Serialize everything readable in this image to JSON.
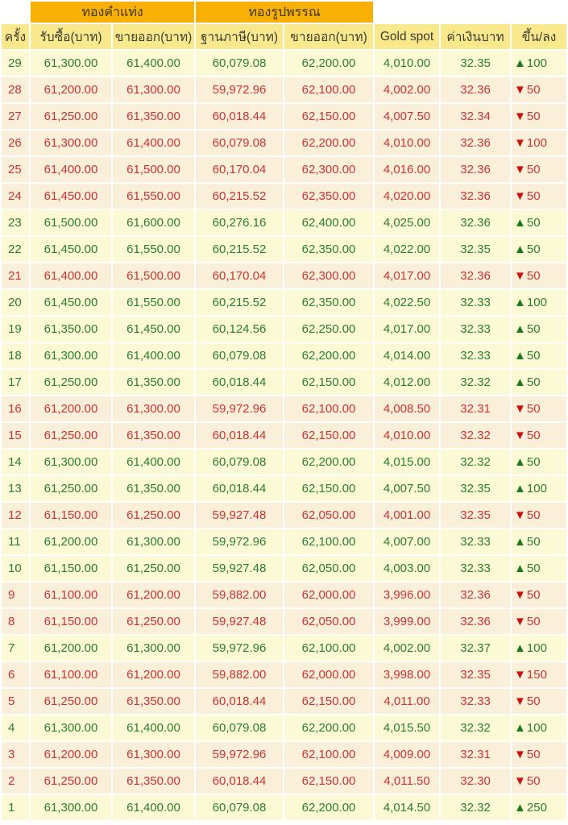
{
  "chart_data": {
    "type": "table",
    "title": "",
    "group_headers": [
      {
        "label": "ทองคำแท่ง",
        "spans_columns": [
          "รับซื้อ(บาท)",
          "ขายออก(บาท)"
        ]
      },
      {
        "label": "ทองรูปพรรณ",
        "spans_columns": [
          "ฐานภาษี(บาท)",
          "ขายออก(บาท)"
        ]
      }
    ],
    "columns": [
      "ครั้ง",
      "รับซื้อ(บาท)",
      "ขายออก(บาท)",
      "ฐานภาษี(บาท)",
      "ขายออก(บาท)",
      "Gold spot",
      "ค่าเงินบาท",
      "ขึ้น/ลง"
    ],
    "icons": {
      "up": "▲",
      "down": "▼"
    },
    "rows": [
      {
        "no": "29",
        "bar_buy": "61,300.00",
        "bar_sell": "61,400.00",
        "tax_base": "60,079.08",
        "ornament_sell": "62,200.00",
        "gold_spot": "4,010.00",
        "baht_rate": "32.35",
        "direction": "up",
        "change": "100"
      },
      {
        "no": "28",
        "bar_buy": "61,200.00",
        "bar_sell": "61,300.00",
        "tax_base": "59,972.96",
        "ornament_sell": "62,100.00",
        "gold_spot": "4,002.00",
        "baht_rate": "32.36",
        "direction": "down",
        "change": "50"
      },
      {
        "no": "27",
        "bar_buy": "61,250.00",
        "bar_sell": "61,350.00",
        "tax_base": "60,018.44",
        "ornament_sell": "62,150.00",
        "gold_spot": "4,007.50",
        "baht_rate": "32.34",
        "direction": "down",
        "change": "50"
      },
      {
        "no": "26",
        "bar_buy": "61,300.00",
        "bar_sell": "61,400.00",
        "tax_base": "60,079.08",
        "ornament_sell": "62,200.00",
        "gold_spot": "4,010.00",
        "baht_rate": "32.36",
        "direction": "down",
        "change": "100"
      },
      {
        "no": "25",
        "bar_buy": "61,400.00",
        "bar_sell": "61,500.00",
        "tax_base": "60,170.04",
        "ornament_sell": "62,300.00",
        "gold_spot": "4,016.00",
        "baht_rate": "32.36",
        "direction": "down",
        "change": "50"
      },
      {
        "no": "24",
        "bar_buy": "61,450.00",
        "bar_sell": "61,550.00",
        "tax_base": "60,215.52",
        "ornament_sell": "62,350.00",
        "gold_spot": "4,020.00",
        "baht_rate": "32.36",
        "direction": "down",
        "change": "50"
      },
      {
        "no": "23",
        "bar_buy": "61,500.00",
        "bar_sell": "61,600.00",
        "tax_base": "60,276.16",
        "ornament_sell": "62,400.00",
        "gold_spot": "4,025.00",
        "baht_rate": "32.36",
        "direction": "up",
        "change": "50"
      },
      {
        "no": "22",
        "bar_buy": "61,450.00",
        "bar_sell": "61,550.00",
        "tax_base": "60,215.52",
        "ornament_sell": "62,350.00",
        "gold_spot": "4,022.00",
        "baht_rate": "32.35",
        "direction": "up",
        "change": "50"
      },
      {
        "no": "21",
        "bar_buy": "61,400.00",
        "bar_sell": "61,500.00",
        "tax_base": "60,170.04",
        "ornament_sell": "62,300.00",
        "gold_spot": "4,017.00",
        "baht_rate": "32.36",
        "direction": "down",
        "change": "50"
      },
      {
        "no": "20",
        "bar_buy": "61,450.00",
        "bar_sell": "61,550.00",
        "tax_base": "60,215.52",
        "ornament_sell": "62,350.00",
        "gold_spot": "4,022.50",
        "baht_rate": "32.33",
        "direction": "up",
        "change": "100"
      },
      {
        "no": "19",
        "bar_buy": "61,350.00",
        "bar_sell": "61,450.00",
        "tax_base": "60,124.56",
        "ornament_sell": "62,250.00",
        "gold_spot": "4,017.00",
        "baht_rate": "32.33",
        "direction": "up",
        "change": "50"
      },
      {
        "no": "18",
        "bar_buy": "61,300.00",
        "bar_sell": "61,400.00",
        "tax_base": "60,079.08",
        "ornament_sell": "62,200.00",
        "gold_spot": "4,014.00",
        "baht_rate": "32.33",
        "direction": "up",
        "change": "50"
      },
      {
        "no": "17",
        "bar_buy": "61,250.00",
        "bar_sell": "61,350.00",
        "tax_base": "60,018.44",
        "ornament_sell": "62,150.00",
        "gold_spot": "4,012.00",
        "baht_rate": "32.32",
        "direction": "up",
        "change": "50"
      },
      {
        "no": "16",
        "bar_buy": "61,200.00",
        "bar_sell": "61,300.00",
        "tax_base": "59,972.96",
        "ornament_sell": "62,100.00",
        "gold_spot": "4,008.50",
        "baht_rate": "32.31",
        "direction": "down",
        "change": "50"
      },
      {
        "no": "15",
        "bar_buy": "61,250.00",
        "bar_sell": "61,350.00",
        "tax_base": "60,018.44",
        "ornament_sell": "62,150.00",
        "gold_spot": "4,010.00",
        "baht_rate": "32.32",
        "direction": "down",
        "change": "50"
      },
      {
        "no": "14",
        "bar_buy": "61,300.00",
        "bar_sell": "61,400.00",
        "tax_base": "60,079.08",
        "ornament_sell": "62,200.00",
        "gold_spot": "4,015.00",
        "baht_rate": "32.32",
        "direction": "up",
        "change": "50"
      },
      {
        "no": "13",
        "bar_buy": "61,250.00",
        "bar_sell": "61,350.00",
        "tax_base": "60,018.44",
        "ornament_sell": "62,150.00",
        "gold_spot": "4,007.50",
        "baht_rate": "32.35",
        "direction": "up",
        "change": "100"
      },
      {
        "no": "12",
        "bar_buy": "61,150.00",
        "bar_sell": "61,250.00",
        "tax_base": "59,927.48",
        "ornament_sell": "62,050.00",
        "gold_spot": "4,001.00",
        "baht_rate": "32.35",
        "direction": "down",
        "change": "50"
      },
      {
        "no": "11",
        "bar_buy": "61,200.00",
        "bar_sell": "61,300.00",
        "tax_base": "59,972.96",
        "ornament_sell": "62,100.00",
        "gold_spot": "4,007.00",
        "baht_rate": "32.33",
        "direction": "up",
        "change": "50"
      },
      {
        "no": "10",
        "bar_buy": "61,150.00",
        "bar_sell": "61,250.00",
        "tax_base": "59,927.48",
        "ornament_sell": "62,050.00",
        "gold_spot": "4,003.00",
        "baht_rate": "32.33",
        "direction": "up",
        "change": "50"
      },
      {
        "no": "9",
        "bar_buy": "61,100.00",
        "bar_sell": "61,200.00",
        "tax_base": "59,882.00",
        "ornament_sell": "62,000.00",
        "gold_spot": "3,996.00",
        "baht_rate": "32.36",
        "direction": "down",
        "change": "50"
      },
      {
        "no": "8",
        "bar_buy": "61,150.00",
        "bar_sell": "61,250.00",
        "tax_base": "59,927.48",
        "ornament_sell": "62,050.00",
        "gold_spot": "3,999.00",
        "baht_rate": "32.36",
        "direction": "down",
        "change": "50"
      },
      {
        "no": "7",
        "bar_buy": "61,200.00",
        "bar_sell": "61,300.00",
        "tax_base": "59,972.96",
        "ornament_sell": "62,100.00",
        "gold_spot": "4,002.00",
        "baht_rate": "32.37",
        "direction": "up",
        "change": "100"
      },
      {
        "no": "6",
        "bar_buy": "61,100.00",
        "bar_sell": "61,200.00",
        "tax_base": "59,882.00",
        "ornament_sell": "62,000.00",
        "gold_spot": "3,998.00",
        "baht_rate": "32.35",
        "direction": "down",
        "change": "150"
      },
      {
        "no": "5",
        "bar_buy": "61,250.00",
        "bar_sell": "61,350.00",
        "tax_base": "60,018.44",
        "ornament_sell": "62,150.00",
        "gold_spot": "4,011.00",
        "baht_rate": "32.33",
        "direction": "down",
        "change": "50"
      },
      {
        "no": "4",
        "bar_buy": "61,300.00",
        "bar_sell": "61,400.00",
        "tax_base": "60,079.08",
        "ornament_sell": "62,200.00",
        "gold_spot": "4,015.50",
        "baht_rate": "32.32",
        "direction": "up",
        "change": "100"
      },
      {
        "no": "3",
        "bar_buy": "61,200.00",
        "bar_sell": "61,300.00",
        "tax_base": "59,972.96",
        "ornament_sell": "62,100.00",
        "gold_spot": "4,009.00",
        "baht_rate": "32.31",
        "direction": "down",
        "change": "50"
      },
      {
        "no": "2",
        "bar_buy": "61,250.00",
        "bar_sell": "61,350.00",
        "tax_base": "60,018.44",
        "ornament_sell": "62,150.00",
        "gold_spot": "4,011.50",
        "baht_rate": "32.30",
        "direction": "down",
        "change": "50"
      },
      {
        "no": "1",
        "bar_buy": "61,300.00",
        "bar_sell": "61,400.00",
        "tax_base": "60,079.08",
        "ornament_sell": "62,200.00",
        "gold_spot": "4,014.50",
        "baht_rate": "32.32",
        "direction": "up",
        "change": "250"
      }
    ],
    "colors": {
      "group_header_bg": "#F8B004",
      "column_header_bg": "#FAE88C",
      "row_up_bg": "#FBFAD5",
      "row_down_bg": "#FAEFD9",
      "up_text": "#2E7D2E",
      "down_text": "#CC3434",
      "grid_line": "#FFFFFF"
    }
  }
}
